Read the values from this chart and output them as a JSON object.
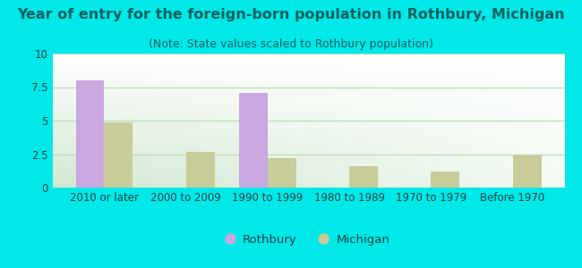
{
  "title": "Year of entry for the foreign-born population in Rothbury, Michigan",
  "subtitle": "(Note: State values scaled to Rothbury population)",
  "categories": [
    "2010 or later",
    "2000 to 2009",
    "1990 to 1999",
    "1980 to 1989",
    "1970 to 1979",
    "Before 1970"
  ],
  "rothbury_values": [
    8.0,
    0.0,
    7.1,
    0.0,
    0.0,
    0.0
  ],
  "michigan_values": [
    4.9,
    2.7,
    2.2,
    1.6,
    1.2,
    2.4
  ],
  "rothbury_color": "#c9a8e0",
  "michigan_color": "#c8cc99",
  "background_outer": "#00e8e8",
  "background_plot_top": "#ffffff",
  "background_plot_bottom": "#d8ecd8",
  "ylim": [
    0,
    10
  ],
  "yticks": [
    0,
    2.5,
    5,
    7.5,
    10
  ],
  "ytick_labels": [
    "0",
    "2.5",
    "5",
    "7.5",
    "10"
  ],
  "grid_color": "#c0ddc0",
  "bar_width": 0.35,
  "legend_rothbury": "Rothbury",
  "legend_michigan": "Michigan",
  "title_fontsize": 11.5,
  "subtitle_fontsize": 9,
  "tick_fontsize": 8.5,
  "legend_fontsize": 9.5,
  "title_color": "#006060",
  "subtitle_color": "#006060",
  "tick_color": "#004444",
  "legend_color": "#004444"
}
